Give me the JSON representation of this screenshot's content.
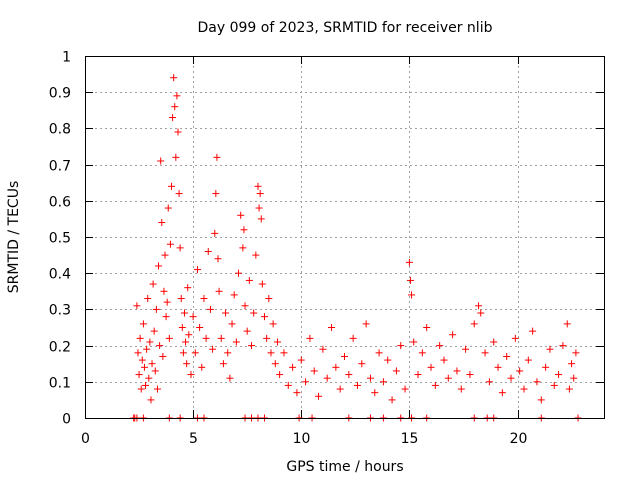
{
  "chart_data": {
    "type": "scatter",
    "title": "Day 099 of 2023, SRMTID for receiver nlib",
    "xlabel": "GPS time / hours",
    "ylabel": "SRMTID / TECUs",
    "xlim": [
      0,
      24
    ],
    "ylim": [
      0,
      1
    ],
    "xticks": [
      0,
      5,
      10,
      15,
      20
    ],
    "xtick_labels": [
      "0",
      "5",
      "10",
      "15",
      "20"
    ],
    "yticks": [
      0,
      0.1,
      0.2,
      0.3,
      0.4,
      0.5,
      0.6,
      0.7,
      0.8,
      0.9,
      1
    ],
    "ytick_labels": [
      "0",
      "0.1",
      "0.2",
      "0.3",
      "0.4",
      "0.5",
      "0.6",
      "0.7",
      "0.8",
      "0.9",
      "1"
    ],
    "grid": true,
    "marker": "+",
    "marker_color": "#ff0000",
    "series": [
      {
        "name": "SRMTID",
        "points": [
          [
            2.3,
            0.0
          ],
          [
            2.4,
            0.31
          ],
          [
            2.45,
            0.18
          ],
          [
            2.5,
            0.12
          ],
          [
            2.55,
            0.22
          ],
          [
            2.6,
            0.08
          ],
          [
            2.65,
            0.16
          ],
          [
            2.7,
            0.26
          ],
          [
            2.75,
            0.14
          ],
          [
            2.8,
            0.09
          ],
          [
            2.85,
            0.19
          ],
          [
            2.9,
            0.33
          ],
          [
            2.95,
            0.11
          ],
          [
            3.0,
            0.21
          ],
          [
            3.05,
            0.05
          ],
          [
            3.1,
            0.15
          ],
          [
            3.15,
            0.37
          ],
          [
            3.2,
            0.24
          ],
          [
            3.25,
            0.13
          ],
          [
            3.3,
            0.3
          ],
          [
            3.35,
            0.08
          ],
          [
            3.4,
            0.42
          ],
          [
            3.45,
            0.2
          ],
          [
            3.5,
            0.71
          ],
          [
            3.55,
            0.54
          ],
          [
            3.6,
            0.17
          ],
          [
            3.65,
            0.35
          ],
          [
            3.7,
            0.45
          ],
          [
            3.75,
            0.28
          ],
          [
            3.8,
            0.32
          ],
          [
            3.85,
            0.58
          ],
          [
            3.9,
            0.22
          ],
          [
            3.95,
            0.48
          ],
          [
            4.0,
            0.64
          ],
          [
            4.05,
            0.83
          ],
          [
            4.1,
            0.94
          ],
          [
            4.15,
            0.86
          ],
          [
            4.2,
            0.72
          ],
          [
            4.25,
            0.89
          ],
          [
            4.3,
            0.79
          ],
          [
            4.35,
            0.62
          ],
          [
            4.4,
            0.47
          ],
          [
            4.45,
            0.33
          ],
          [
            4.5,
            0.25
          ],
          [
            4.55,
            0.18
          ],
          [
            4.6,
            0.29
          ],
          [
            4.65,
            0.21
          ],
          [
            4.7,
            0.15
          ],
          [
            4.75,
            0.36
          ],
          [
            4.8,
            0.23
          ],
          [
            4.9,
            0.12
          ],
          [
            5.0,
            0.28
          ],
          [
            5.1,
            0.18
          ],
          [
            5.2,
            0.41
          ],
          [
            5.3,
            0.25
          ],
          [
            5.4,
            0.14
          ],
          [
            5.5,
            0.33
          ],
          [
            5.6,
            0.22
          ],
          [
            5.7,
            0.46
          ],
          [
            5.8,
            0.3
          ],
          [
            5.9,
            0.19
          ],
          [
            6.0,
            0.51
          ],
          [
            6.05,
            0.62
          ],
          [
            6.1,
            0.72
          ],
          [
            6.15,
            0.44
          ],
          [
            6.2,
            0.35
          ],
          [
            6.3,
            0.22
          ],
          [
            6.4,
            0.15
          ],
          [
            6.5,
            0.29
          ],
          [
            6.6,
            0.18
          ],
          [
            6.7,
            0.11
          ],
          [
            6.8,
            0.26
          ],
          [
            6.9,
            0.34
          ],
          [
            7.0,
            0.21
          ],
          [
            7.1,
            0.4
          ],
          [
            7.2,
            0.56
          ],
          [
            7.3,
            0.47
          ],
          [
            7.35,
            0.52
          ],
          [
            7.4,
            0.31
          ],
          [
            7.5,
            0.24
          ],
          [
            7.6,
            0.38
          ],
          [
            7.7,
            0.2
          ],
          [
            7.8,
            0.29
          ],
          [
            7.9,
            0.45
          ],
          [
            8.0,
            0.64
          ],
          [
            8.05,
            0.58
          ],
          [
            8.1,
            0.62
          ],
          [
            8.15,
            0.55
          ],
          [
            8.2,
            0.37
          ],
          [
            8.3,
            0.28
          ],
          [
            8.4,
            0.22
          ],
          [
            8.5,
            0.33
          ],
          [
            8.6,
            0.18
          ],
          [
            8.7,
            0.26
          ],
          [
            8.8,
            0.15
          ],
          [
            8.9,
            0.21
          ],
          [
            9.0,
            0.12
          ],
          [
            9.2,
            0.18
          ],
          [
            9.4,
            0.09
          ],
          [
            9.6,
            0.14
          ],
          [
            9.8,
            0.07
          ],
          [
            10.0,
            0.16
          ],
          [
            10.2,
            0.1
          ],
          [
            10.4,
            0.22
          ],
          [
            10.6,
            0.13
          ],
          [
            10.8,
            0.06
          ],
          [
            11.0,
            0.19
          ],
          [
            11.2,
            0.11
          ],
          [
            11.4,
            0.25
          ],
          [
            11.6,
            0.14
          ],
          [
            11.8,
            0.08
          ],
          [
            12.0,
            0.17
          ],
          [
            12.2,
            0.12
          ],
          [
            12.4,
            0.22
          ],
          [
            12.6,
            0.09
          ],
          [
            12.8,
            0.15
          ],
          [
            13.0,
            0.26
          ],
          [
            13.2,
            0.11
          ],
          [
            13.4,
            0.07
          ],
          [
            13.6,
            0.18
          ],
          [
            13.8,
            0.1
          ],
          [
            14.0,
            0.16
          ],
          [
            14.2,
            0.05
          ],
          [
            14.4,
            0.13
          ],
          [
            14.6,
            0.2
          ],
          [
            14.8,
            0.08
          ],
          [
            15.0,
            0.43
          ],
          [
            15.05,
            0.38
          ],
          [
            15.1,
            0.34
          ],
          [
            15.2,
            0.21
          ],
          [
            15.4,
            0.12
          ],
          [
            15.6,
            0.18
          ],
          [
            15.8,
            0.25
          ],
          [
            16.0,
            0.14
          ],
          [
            16.2,
            0.09
          ],
          [
            16.4,
            0.2
          ],
          [
            16.6,
            0.16
          ],
          [
            16.8,
            0.11
          ],
          [
            17.0,
            0.23
          ],
          [
            17.2,
            0.13
          ],
          [
            17.4,
            0.08
          ],
          [
            17.6,
            0.19
          ],
          [
            17.8,
            0.12
          ],
          [
            18.0,
            0.26
          ],
          [
            18.2,
            0.31
          ],
          [
            18.3,
            0.29
          ],
          [
            18.5,
            0.18
          ],
          [
            18.7,
            0.1
          ],
          [
            18.9,
            0.21
          ],
          [
            19.1,
            0.14
          ],
          [
            19.3,
            0.07
          ],
          [
            19.5,
            0.17
          ],
          [
            19.7,
            0.11
          ],
          [
            19.9,
            0.22
          ],
          [
            20.1,
            0.13
          ],
          [
            20.3,
            0.08
          ],
          [
            20.5,
            0.16
          ],
          [
            20.7,
            0.24
          ],
          [
            20.9,
            0.1
          ],
          [
            21.1,
            0.05
          ],
          [
            21.3,
            0.14
          ],
          [
            21.5,
            0.19
          ],
          [
            21.7,
            0.09
          ],
          [
            21.9,
            0.12
          ],
          [
            22.1,
            0.2
          ],
          [
            22.3,
            0.26
          ],
          [
            22.4,
            0.08
          ],
          [
            22.5,
            0.15
          ],
          [
            22.6,
            0.11
          ],
          [
            22.7,
            0.18
          ]
        ],
        "zero_points": [
          2.25,
          2.4,
          2.7,
          3.9,
          4.4,
          5.2,
          5.5,
          7.4,
          7.7,
          8.0,
          8.3,
          9.9,
          10.5,
          12.2,
          13.2,
          13.8,
          14.6,
          15.1,
          15.8,
          18.0,
          18.6,
          18.9,
          21.1,
          22.8
        ]
      }
    ]
  }
}
